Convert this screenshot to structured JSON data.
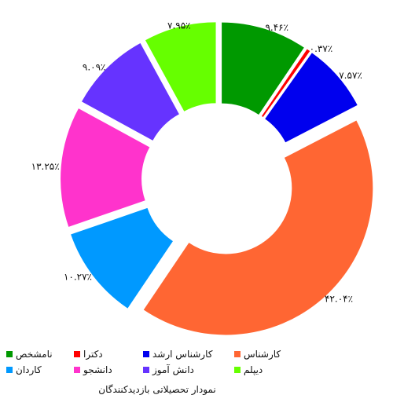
{
  "chart_data": {
    "type": "pie",
    "subtype": "donut-exploded",
    "title": "نمودار تحصیلاتی بازدیدکنندگان",
    "slices": [
      {
        "name": "نامشخص",
        "value": 9.46,
        "label": "۹.۴۶٪",
        "color": "#009900"
      },
      {
        "name": "دکترا",
        "value": 0.37,
        "label": "۰.۳۷٪",
        "color": "#ff0000"
      },
      {
        "name": "کارشناس ارشد",
        "value": 7.57,
        "label": "۷.۵۷٪",
        "color": "#0000ee"
      },
      {
        "name": "کارشناس",
        "value": 42.04,
        "label": "۴۲.۰۴٪",
        "color": "#ff6633"
      },
      {
        "name": "کاردان",
        "value": 10.27,
        "label": "۱۰.۲۷٪",
        "color": "#0099ff"
      },
      {
        "name": "دانشجو",
        "value": 13.25,
        "label": "۱۳.۲۵٪",
        "color": "#ff33cc"
      },
      {
        "name": "دانش آموز",
        "value": 9.09,
        "label": "۹.۰۹٪",
        "color": "#6633ff"
      },
      {
        "name": "دیپلم",
        "value": 7.95,
        "label": "۷.۹۵٪",
        "color": "#66ff00"
      }
    ],
    "legend_position": "bottom"
  }
}
